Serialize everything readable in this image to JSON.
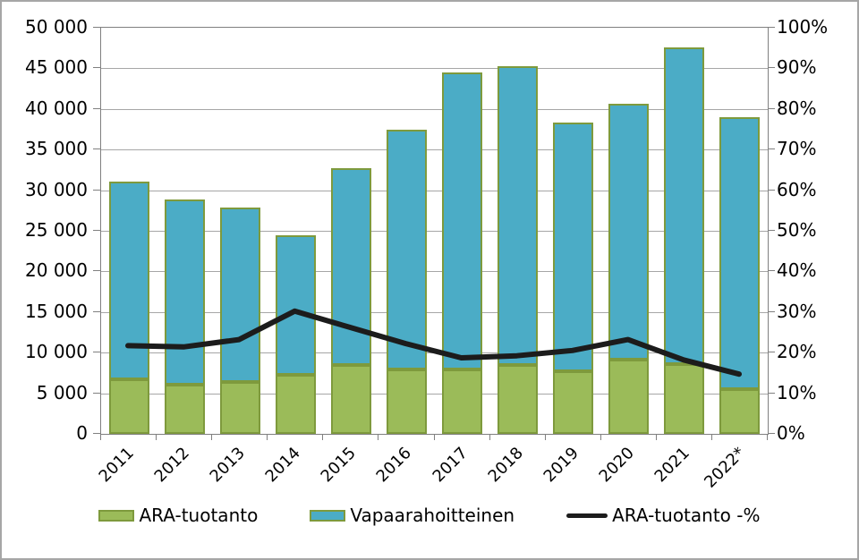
{
  "chart_data": {
    "type": "bar",
    "subtype": "stacked-bars-with-percentage-line",
    "title": "",
    "categories": [
      "2011",
      "2012",
      "2013",
      "2014",
      "2015",
      "2016",
      "2017",
      "2018",
      "2019",
      "2020",
      "2021",
      "2022*"
    ],
    "series": [
      {
        "name": "ARA-tuotanto",
        "color": "#9bbb59",
        "border_color": "#7e9a3d",
        "axis": "left",
        "values": [
          6700,
          6100,
          6400,
          7300,
          8500,
          7900,
          7900,
          8500,
          7700,
          9100,
          8600,
          5500
        ]
      },
      {
        "name": "Vapaarahoitteinen",
        "color": "#4bacc6",
        "border_color": "#7e9a3d",
        "axis": "left",
        "values": [
          24400,
          22700,
          21500,
          17200,
          24200,
          29500,
          36600,
          36800,
          30600,
          31500,
          39000,
          33500
        ]
      }
    ],
    "stacked_totals": [
      31100,
      28800,
      27900,
      24500,
      32700,
      37400,
      44500,
      45300,
      38300,
      40600,
      47600,
      39000
    ],
    "line_series": {
      "name": "ARA-tuotanto -%",
      "color": "#1c1c1c",
      "axis": "right",
      "values_percent": [
        21.5,
        21.2,
        23,
        30,
        26,
        22,
        18.5,
        19,
        20.3,
        23,
        18,
        14.5
      ]
    },
    "left_axis": {
      "min": 0,
      "max": 50000,
      "step": 5000,
      "tick_labels": [
        "0",
        "5 000",
        "10 000",
        "15 000",
        "20 000",
        "25 000",
        "30 000",
        "35 000",
        "40 000",
        "45 000",
        "50 000"
      ]
    },
    "right_axis": {
      "min": 0,
      "max": 100,
      "step": 10,
      "tick_labels": [
        "0%",
        "10%",
        "20%",
        "30%",
        "40%",
        "50%",
        "60%",
        "70%",
        "80%",
        "90%",
        "100%"
      ]
    },
    "grid": true,
    "legend_position": "bottom",
    "colors": {
      "gridline": "#a6a6a6",
      "axis_line": "#808080",
      "plot_background": "#ffffff",
      "outer_border": "#a6a6a6",
      "text": "#000000"
    }
  },
  "legend": {
    "items": [
      {
        "label": "ARA-tuotanto",
        "swatch": "green-box"
      },
      {
        "label": "Vapaarahoitteinen",
        "swatch": "blue-box"
      },
      {
        "label": "ARA-tuotanto -%",
        "swatch": "black-line"
      }
    ]
  }
}
